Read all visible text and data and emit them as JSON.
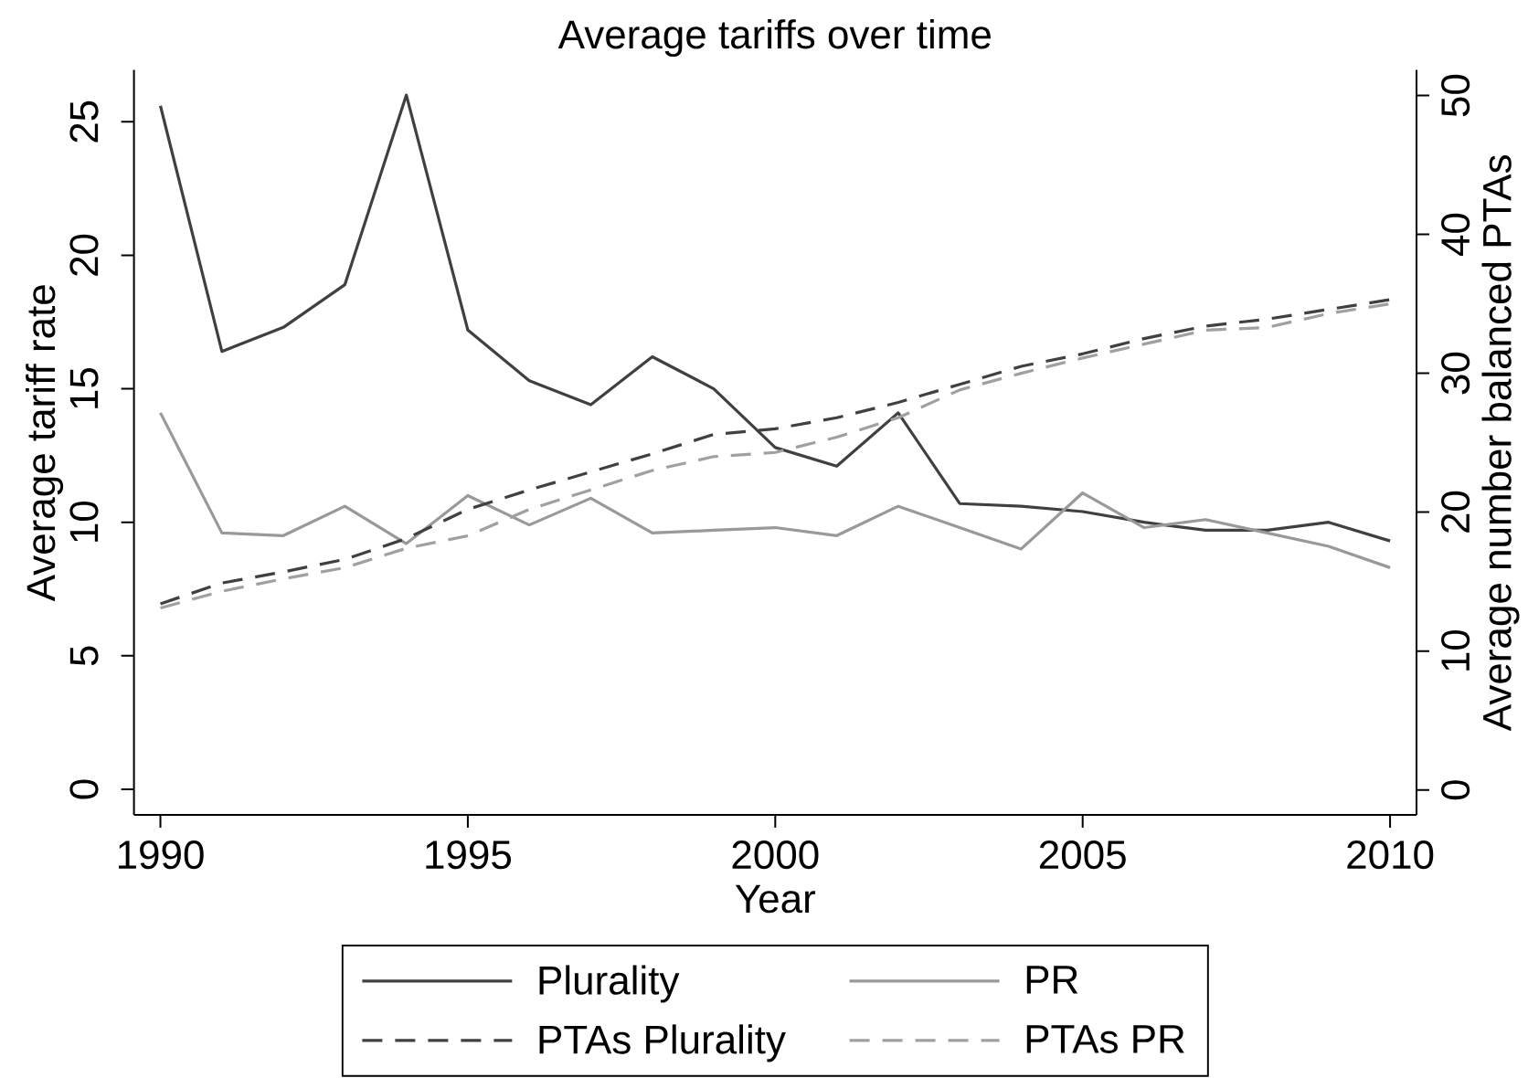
{
  "chart_data": {
    "type": "line",
    "title": "Average tariffs over time",
    "xlabel": "Year",
    "ylabel": "Average tariff rate",
    "y2label": "Average number balanced PTAs",
    "x": [
      1990,
      1991,
      1992,
      1993,
      1994,
      1995,
      1996,
      1997,
      1998,
      1999,
      2000,
      2001,
      2002,
      2003,
      2004,
      2005,
      2006,
      2007,
      2008,
      2009,
      2010
    ],
    "xlim": [
      1989.57,
      2010.43
    ],
    "xticks": [
      1990,
      1995,
      2000,
      2005,
      2010
    ],
    "ylim": [
      -0.96,
      26.94
    ],
    "yticks": [
      0,
      5,
      10,
      15,
      20,
      25
    ],
    "y2lim": [
      -1.8,
      51.84
    ],
    "y2ticks": [
      0,
      10,
      20,
      30,
      40,
      50
    ],
    "legend": "bottom",
    "marker": "none",
    "series": [
      {
        "name": "Plurality",
        "color": "#404040",
        "line_style": "solid",
        "values": [
          25.6,
          16.4,
          17.3,
          18.9,
          26.0,
          17.2,
          15.3,
          14.4,
          16.2,
          15.0,
          12.8,
          12.1,
          14.1,
          10.7,
          10.6,
          10.4,
          10.0,
          9.7,
          9.7,
          10.0,
          9.3
        ]
      },
      {
        "name": "PR",
        "color": "#999999",
        "line_style": "solid",
        "values": [
          14.1,
          9.6,
          9.5,
          10.6,
          9.2,
          11.0,
          9.9,
          10.9,
          9.6,
          9.7,
          9.8,
          9.5,
          10.6,
          9.8,
          9.0,
          11.1,
          9.8,
          10.1,
          9.6,
          9.1,
          8.3
        ]
      },
      {
        "name": "PTAs Plurality",
        "color": "#404040",
        "line_style": "dashed",
        "axis": "y2",
        "values": [
          13.4,
          14.9,
          15.7,
          16.6,
          18.1,
          20.2,
          21.6,
          22.9,
          24.2,
          25.6,
          26.0,
          26.8,
          27.9,
          29.2,
          30.5,
          31.4,
          32.5,
          33.4,
          33.9,
          34.6,
          35.3
        ]
      },
      {
        "name": "PTAs PR",
        "color": "#a0a0a0",
        "line_style": "dashed",
        "axis": "y2",
        "values": [
          13.1,
          14.3,
          15.2,
          16.0,
          17.4,
          18.3,
          20.2,
          21.6,
          23.0,
          24.0,
          24.3,
          25.4,
          26.8,
          28.8,
          30.0,
          31.1,
          32.1,
          33.1,
          33.3,
          34.3,
          35.0
        ]
      }
    ]
  }
}
